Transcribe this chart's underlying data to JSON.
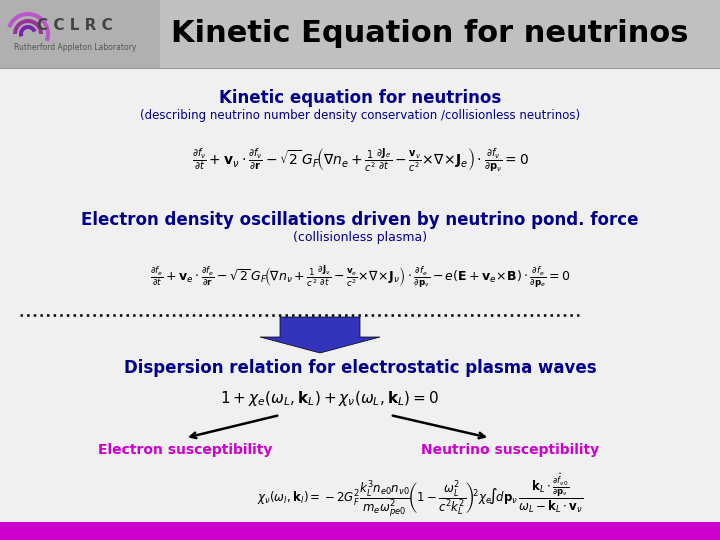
{
  "title": "Kinetic Equation for neutrinos",
  "header_bg_left": "#aaaaaa",
  "header_bg_right": "#cccccc",
  "slide_bg": "#e0e0e0",
  "content_bg": "#f4f4f4",
  "footer_color": "#cc00cc",
  "section1_title": "Kinetic equation for neutrinos",
  "section1_subtitle": "(describing neutrino number density conservation /collisionless neutrinos)",
  "section_color": "#00008B",
  "section2_title": "Electron density oscillations driven by neutrino pond. force",
  "section2_subtitle": "(collisionless plasma)",
  "section3_title": "Dispersion relation for electrostatic plasma waves",
  "label_electron": "Electron susceptibility",
  "label_neutrino": "Neutrino susceptibility",
  "label_color": "#cc00cc",
  "eq_color": "#000000",
  "arrow_fill": "#3333bb"
}
